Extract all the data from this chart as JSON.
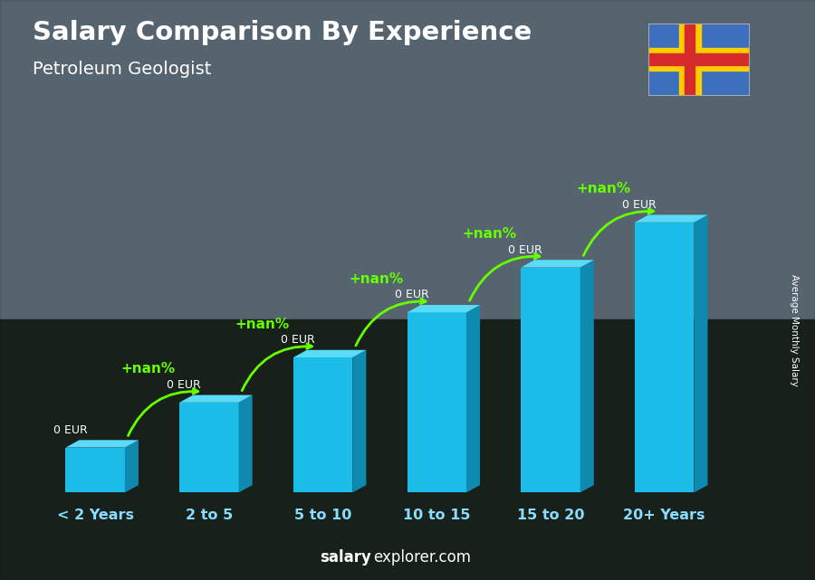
{
  "title": "Salary Comparison By Experience",
  "subtitle": "Petroleum Geologist",
  "categories": [
    "< 2 Years",
    "2 to 5",
    "5 to 10",
    "10 to 15",
    "15 to 20",
    "20+ Years"
  ],
  "bar_labels": [
    "0 EUR",
    "0 EUR",
    "0 EUR",
    "0 EUR",
    "0 EUR",
    "0 EUR"
  ],
  "change_labels": [
    "+nan%",
    "+nan%",
    "+nan%",
    "+nan%",
    "+nan%"
  ],
  "bar_heights": [
    1,
    2,
    3,
    4,
    5,
    6
  ],
  "bar_face_color": "#1BBDE8",
  "bar_top_color": "#5ADCF8",
  "bar_side_color": "#0E8AB0",
  "bg_top_color": "#6a7a8a",
  "bg_bottom_color": "#1a2a1a",
  "change_color": "#66FF00",
  "label_color": "#FFFFFF",
  "title_color": "#FFFFFF",
  "subtitle_color": "#FFFFFF",
  "ylabel_text": "Average Monthly Salary",
  "footer_bold": "salary",
  "footer_normal": "explorer.com",
  "flag_blue": "#3D6FBF",
  "flag_yellow": "#FFCC00",
  "flag_red": "#D62B2B"
}
